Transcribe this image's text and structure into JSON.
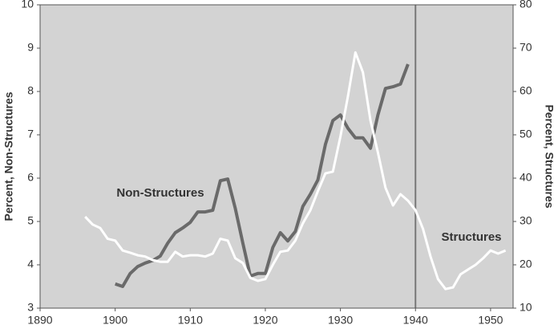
{
  "chart_data": {
    "type": "line",
    "y_label": "Percent, Non-Structures",
    "y2_label": "Percent, Structures",
    "xlim": [
      1890,
      1953
    ],
    "xticks": [
      1890,
      1900,
      1910,
      1920,
      1930,
      1940,
      1950
    ],
    "ylim": [
      3,
      10
    ],
    "yticks": [
      3,
      4,
      5,
      6,
      7,
      8,
      9,
      10
    ],
    "y2lim": [
      10,
      80
    ],
    "y2ticks": [
      10,
      20,
      30,
      40,
      50,
      60,
      70,
      80
    ],
    "vline": 1940,
    "vline_color": "#777777",
    "background": "#d3d3d3",
    "series": [
      {
        "name": "Non-Structures",
        "color": "#6a6a6a",
        "x": [
          1900,
          1901,
          1902,
          1903,
          1904,
          1905,
          1906,
          1907,
          1908,
          1909,
          1910,
          1911,
          1912,
          1913,
          1914,
          1915,
          1916,
          1917,
          1918,
          1919,
          1920,
          1921,
          1922,
          1923,
          1924,
          1925,
          1926,
          1927,
          1928,
          1929,
          1930,
          1931,
          1932,
          1933,
          1934,
          1935,
          1936,
          1937,
          1938,
          1939
        ],
        "values": [
          3.56,
          3.5,
          3.8,
          3.96,
          4.04,
          4.1,
          4.2,
          4.5,
          4.74,
          4.85,
          4.98,
          5.22,
          5.22,
          5.26,
          5.94,
          5.98,
          5.3,
          4.5,
          3.74,
          3.8,
          3.8,
          4.4,
          4.74,
          4.55,
          4.77,
          5.35,
          5.63,
          5.96,
          6.78,
          7.33,
          7.46,
          7.15,
          6.93,
          6.93,
          6.69,
          7.46,
          8.07,
          8.11,
          8.17,
          8.63
        ]
      },
      {
        "name": "Structures",
        "color": "#ffffff",
        "axis": "y2",
        "x": [
          1896,
          1897,
          1898,
          1899,
          1900,
          1901,
          1902,
          1903,
          1904,
          1905,
          1906,
          1907,
          1908,
          1909,
          1910,
          1911,
          1912,
          1913,
          1914,
          1915,
          1916,
          1917,
          1918,
          1919,
          1920,
          1921,
          1922,
          1923,
          1924,
          1925,
          1926,
          1927,
          1928,
          1929,
          1930,
          1931,
          1932,
          1933,
          1934,
          1935,
          1936,
          1937,
          1938,
          1939,
          1940,
          1941,
          1942,
          1943,
          1944,
          1945,
          1946,
          1947,
          1948,
          1949,
          1950,
          1951,
          1952
        ],
        "values": [
          31.1,
          29.3,
          28.5,
          26,
          25.6,
          23.3,
          22.8,
          22.2,
          21.9,
          21.1,
          20.7,
          20.7,
          23,
          21.9,
          22.2,
          22.2,
          21.9,
          22.6,
          26,
          25.6,
          21.5,
          20.4,
          17,
          16.3,
          16.7,
          20,
          23,
          23.3,
          25.6,
          29.6,
          32.6,
          37,
          41.1,
          41.5,
          49.6,
          58.9,
          69,
          64.4,
          53.3,
          45.9,
          37.8,
          33.7,
          36.3,
          34.8,
          32.6,
          28.3,
          21.9,
          16.7,
          14.4,
          14.8,
          17.8,
          18.9,
          20,
          21.5,
          23.3,
          22.6,
          23.3
        ]
      }
    ]
  }
}
